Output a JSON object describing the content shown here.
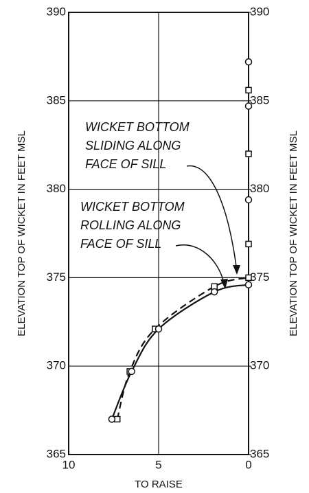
{
  "chart_data": {
    "type": "line",
    "y_label": "ELEVATION TOP OF WICKET IN FEET MSL",
    "y2_label": "ELEVATION TOP OF WICKET IN FEET MSL",
    "x_label": "TO RAISE",
    "xlim": [
      10,
      0
    ],
    "xticks": [
      10,
      5,
      0
    ],
    "ylim": [
      365,
      390
    ],
    "yticks": [
      365,
      370,
      375,
      380,
      385,
      390
    ],
    "y2lim": [
      365,
      390
    ],
    "y2ticks": [
      365,
      370,
      375,
      380,
      385,
      390
    ],
    "grid": true,
    "color": "#111111",
    "annotations": [
      {
        "lines": [
          "WICKET BOTTOM",
          "SLIDING ALONG",
          "FACE OF SILL"
        ]
      },
      {
        "lines": [
          "WICKET BOTTOM",
          "ROLLING ALONG",
          "FACE OF SILL"
        ]
      }
    ],
    "series": [
      {
        "line": "dashed",
        "marker": "square",
        "x": [
          7.3,
          6.6,
          5.2,
          1.9,
          0
        ],
        "values": [
          367.0,
          369.7,
          372.1,
          374.5,
          375.0
        ]
      },
      {
        "line": "solid",
        "marker": "circle",
        "x": [
          7.6,
          6.5,
          5.0,
          1.9,
          0
        ],
        "values": [
          367.0,
          369.7,
          372.1,
          374.2,
          374.6
        ]
      },
      {
        "line": "none",
        "marker": "circle",
        "x": [
          0,
          0,
          0
        ],
        "values": [
          387.2,
          384.7,
          379.4
        ]
      },
      {
        "line": "none",
        "marker": "square",
        "x": [
          0,
          0,
          0
        ],
        "values": [
          385.6,
          382.0,
          376.9
        ]
      }
    ]
  }
}
